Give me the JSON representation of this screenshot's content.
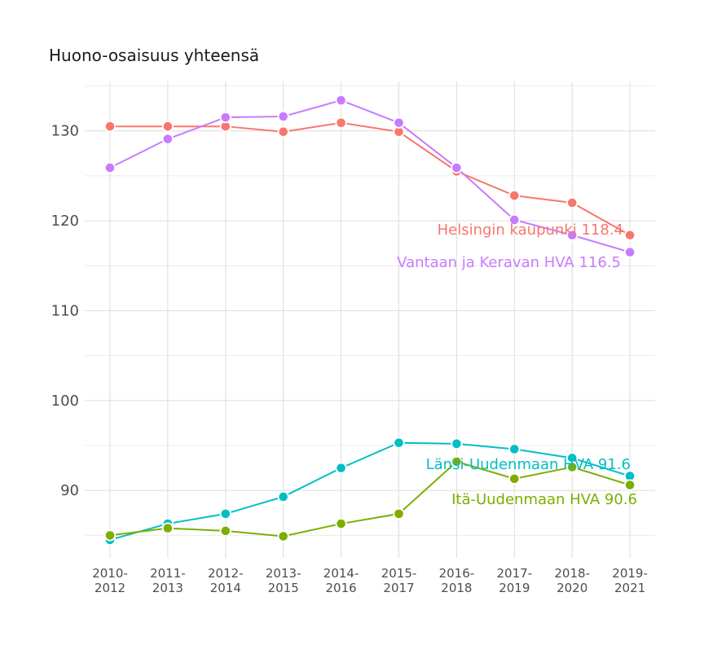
{
  "chart_data": {
    "type": "line",
    "title": "Huono-osaisuus yhteensä",
    "xlabel": "",
    "ylabel": "",
    "categories": [
      "2010-2012",
      "2011-2013",
      "2012-2014",
      "2013-2015",
      "2014-2016",
      "2015-2017",
      "2016-2018",
      "2017-2019",
      "2018-2020",
      "2019-2021"
    ],
    "category_lines": [
      [
        "2010-",
        "2012"
      ],
      [
        "2011-",
        "2013"
      ],
      [
        "2012-",
        "2014"
      ],
      [
        "2013-",
        "2015"
      ],
      [
        "2014-",
        "2016"
      ],
      [
        "2015-",
        "2017"
      ],
      [
        "2016-",
        "2018"
      ],
      [
        "2017-",
        "2019"
      ],
      [
        "2018-",
        "2020"
      ],
      [
        "2019-",
        "2021"
      ]
    ],
    "ylim": [
      82.5,
      135.5
    ],
    "yticks": [
      90,
      100,
      110,
      120,
      130
    ],
    "grid": true,
    "legend": "none",
    "series": [
      {
        "name": "Helsingin kaupunki",
        "color": "#F8766D",
        "values": [
          130.5,
          130.5,
          130.5,
          129.9,
          130.9,
          129.9,
          125.5,
          122.8,
          122.0,
          118.4
        ],
        "end_label": "Helsingin kaupunki 118.4"
      },
      {
        "name": "Vantaan ja Keravan HVA",
        "color": "#C77CFF",
        "values": [
          125.9,
          129.1,
          131.5,
          131.6,
          133.4,
          130.9,
          125.9,
          120.1,
          118.4,
          116.5
        ],
        "end_label": "Vantaan ja Keravan HVA 116.5"
      },
      {
        "name": "Länsi-Uudenmaan HVA",
        "color": "#00BFC4",
        "values": [
          84.5,
          86.3,
          87.4,
          89.3,
          92.5,
          95.3,
          95.2,
          94.6,
          93.6,
          91.6
        ],
        "end_label": "Länsi-Uudenmaan HVA 91.6"
      },
      {
        "name": "Itä-Uudenmaan HVA",
        "color": "#7CAE00",
        "values": [
          85.0,
          85.8,
          85.5,
          84.9,
          86.3,
          87.4,
          93.2,
          91.3,
          92.6,
          90.6
        ],
        "end_label": "Itä-Uudenmaan HVA 90.6"
      }
    ]
  }
}
